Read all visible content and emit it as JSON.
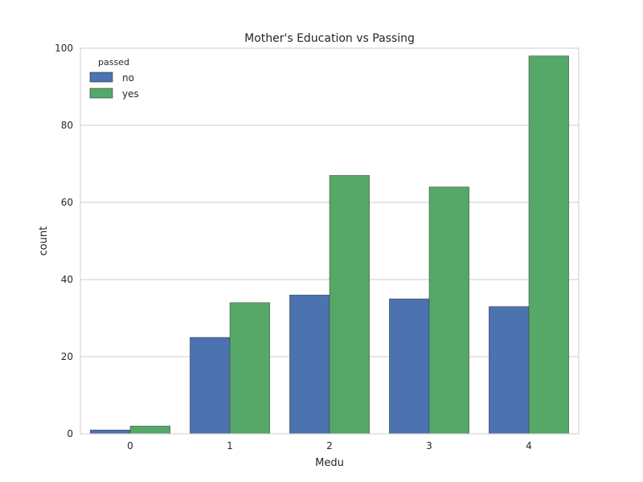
{
  "chart_data": {
    "type": "bar",
    "title": "Mother's Education vs Passing",
    "xlabel": "Medu",
    "ylabel": "count",
    "categories": [
      "0",
      "1",
      "2",
      "3",
      "4"
    ],
    "series": [
      {
        "name": "no",
        "values": [
          1,
          25,
          36,
          35,
          33
        ],
        "color": "#4c72b0"
      },
      {
        "name": "yes",
        "values": [
          2,
          34,
          67,
          64,
          98
        ],
        "color": "#55a868"
      }
    ],
    "ylim": [
      0,
      100
    ],
    "yticks": [
      0,
      20,
      40,
      60,
      80,
      100
    ],
    "grid": true,
    "legend": {
      "title": "passed",
      "position": "top-left"
    }
  }
}
